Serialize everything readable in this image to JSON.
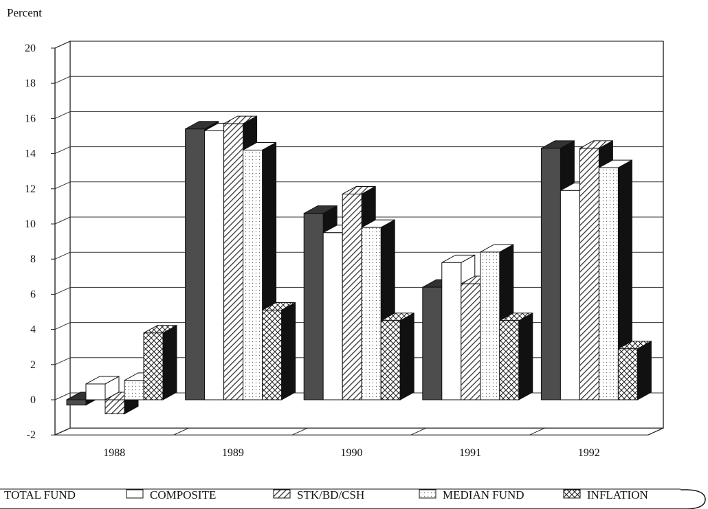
{
  "chart_data": {
    "type": "bar",
    "title": "",
    "ylabel": "Percent",
    "xlabel": "",
    "ylim": [
      -2,
      20
    ],
    "yticks": [
      -2,
      0,
      2,
      4,
      6,
      8,
      10,
      12,
      14,
      16,
      18,
      20
    ],
    "grid": true,
    "legend_position": "bottom",
    "categories": [
      "1988",
      "1989",
      "1990",
      "1991",
      "1992"
    ],
    "series": [
      {
        "name": "TOTAL FUND",
        "values": [
          -0.3,
          15.4,
          10.6,
          6.4,
          14.3
        ],
        "pattern": "solid-dark"
      },
      {
        "name": "COMPOSITE",
        "values": [
          0.9,
          15.3,
          9.5,
          7.8,
          11.9
        ],
        "pattern": "white"
      },
      {
        "name": "STK/BD/CSH",
        "values": [
          -0.8,
          15.7,
          11.7,
          6.6,
          14.3
        ],
        "pattern": "diagonal-hatch"
      },
      {
        "name": "MEDIAN FUND",
        "values": [
          1.1,
          14.2,
          9.8,
          8.4,
          13.2
        ],
        "pattern": "dotted"
      },
      {
        "name": "INFLATION",
        "values": [
          3.8,
          5.1,
          4.5,
          4.5,
          2.9
        ],
        "pattern": "crosshatch"
      }
    ]
  }
}
